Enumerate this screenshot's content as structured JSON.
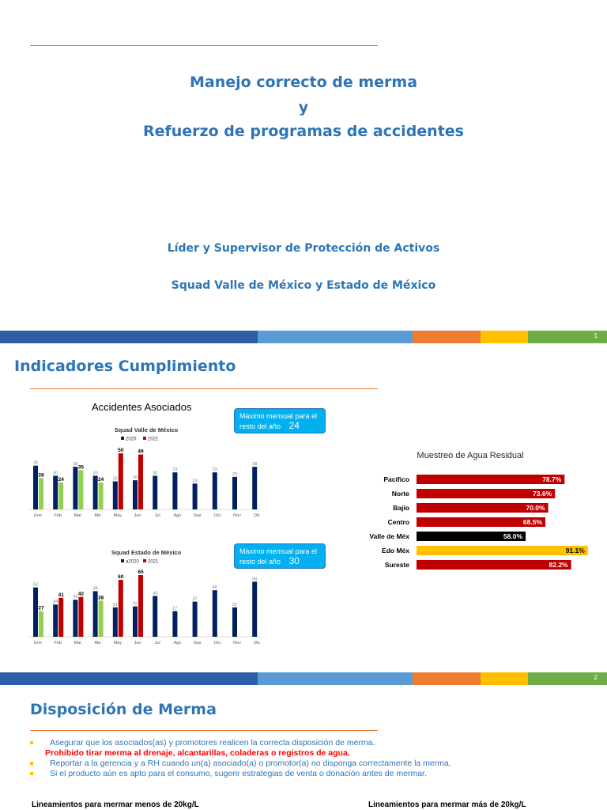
{
  "slide1": {
    "title_lines": [
      "Manejo correcto de merma",
      "y",
      "Refuerzo de programas de accidentes"
    ],
    "subtitle1": "Líder y Supervisor de Protección de Activos",
    "subtitle2": "Squad Valle de México y Estado de México",
    "page_number": "1"
  },
  "slide2": {
    "heading": "Indicadores Cumplimiento",
    "left_title": "Accidentes Asociados",
    "page_number": "2",
    "callout1": {
      "text": "Máximo mensual para el resto del año",
      "value": "24"
    },
    "callout2": {
      "text": "Máximo mensual para el resto del año",
      "value": "30"
    }
  },
  "slide3": {
    "heading": "Disposición de Merma",
    "bullet1": "Asegurar que los asociados(as) y promotores realicen la correcta disposición de merma.",
    "bullet1_red": "Prohibido tirar merma al drenaje, alcantarillas, coladeras o registros de agua.",
    "bullet2": "Reportar a la gerencia y a RH cuando un(a) asociado(a) o promotor(a) no disponga correctamente la merma.",
    "bullet3": "Si el producto aún es apto para el consumo, sugerir estrategias de venta o donación antes de mermar.",
    "sub_left": "Lineamientos para mermar menos de 20kg/L",
    "sub_right": "Lineamientos para mermar más de 20kg/L"
  },
  "colors": {
    "accent_blue": "#2e75b6",
    "rule_orange": "#ed7d31",
    "bar_2020": "#002060",
    "bar_2021_green": "#92d050",
    "bar_2021_red": "#c00000",
    "hbar_red": "#c00000",
    "hbar_black": "#000000",
    "hbar_yellow": "#ffc000"
  },
  "chart_data": [
    {
      "type": "bar",
      "title": "Squad Valle de México",
      "categories": [
        "Ene",
        "Feb",
        "Mar",
        "Abr",
        "May",
        "Jun",
        "Jul",
        "Ago",
        "Sep",
        "Oct",
        "Nov",
        "Dic"
      ],
      "series": [
        {
          "name": "2020",
          "values": [
            39,
            30,
            38,
            30,
            25,
            26,
            30,
            33,
            23,
            33,
            29,
            38
          ]
        },
        {
          "name": "2021",
          "values": [
            28,
            24,
            35,
            24,
            50,
            49,
            null,
            null,
            null,
            null,
            null,
            null
          ]
        }
      ],
      "ylim": [
        0,
        55
      ]
    },
    {
      "type": "bar",
      "title": "Squad Estado de México",
      "categories": [
        "Ene",
        "Feb",
        "Mar",
        "Abr",
        "May",
        "Jun",
        "Jul",
        "Ago",
        "Sep",
        "Oct",
        "Nov",
        "Dic"
      ],
      "series": [
        {
          "name": "a2020",
          "values": [
            52,
            34,
            39,
            48,
            31,
            32,
            43,
            27,
            37,
            49,
            31,
            58
          ]
        },
        {
          "name": "2021",
          "values": [
            27,
            41,
            42,
            38,
            60,
            65,
            null,
            null,
            null,
            null,
            null,
            null
          ]
        }
      ],
      "ylim": [
        0,
        70
      ]
    },
    {
      "type": "bar",
      "orientation": "horizontal",
      "title": "Muestreo de Agua Residual",
      "categories": [
        "Pacífico",
        "Norte",
        "Bajío",
        "Centro",
        "Valle de Méx",
        "Edo Méx",
        "Sureste"
      ],
      "values": [
        78.7,
        73.6,
        70.0,
        68.5,
        58.0,
        91.1,
        82.2
      ],
      "value_labels": [
        "78.7%",
        "73.6%",
        "70.0%",
        "68.5%",
        "58.0%",
        "91.1%",
        "82.2%"
      ],
      "colors": [
        "#c00000",
        "#c00000",
        "#c00000",
        "#c00000",
        "#000000",
        "#ffc000",
        "#c00000"
      ],
      "xlim": [
        0,
        100
      ]
    }
  ]
}
